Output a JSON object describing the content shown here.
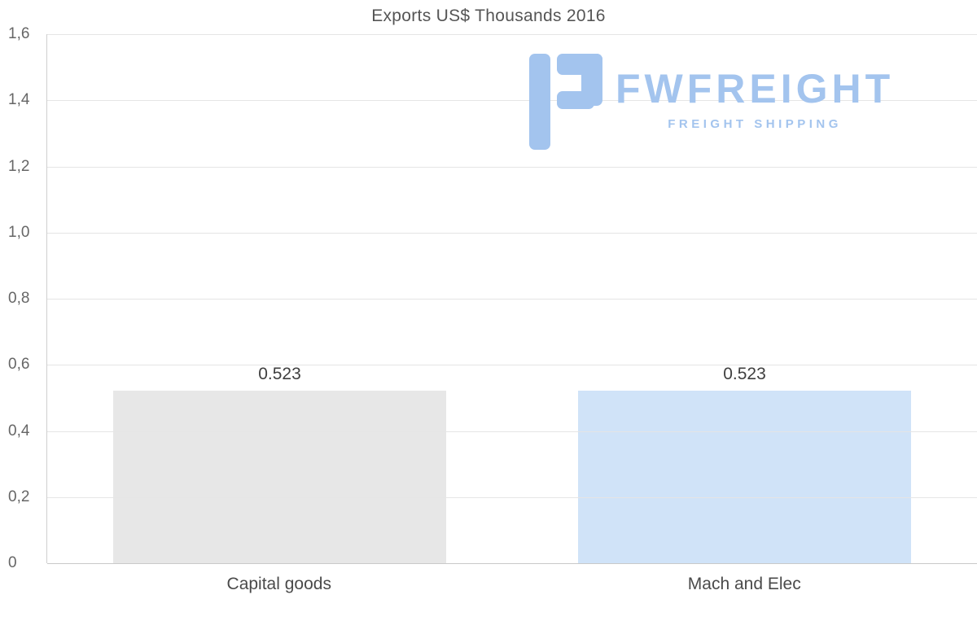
{
  "watermark": {
    "brand": "FWFREIGHT",
    "tagline": "FREIGHT SHIPPING",
    "color": "#a3c4ee"
  },
  "chart_data": {
    "type": "bar",
    "title": "Exports US$ Thousands 2016",
    "categories": [
      "Capital goods",
      "Mach and Elec"
    ],
    "values": [
      0.523,
      0.523
    ],
    "value_labels": [
      "0.523",
      "0.523"
    ],
    "bar_colors": [
      "#e7e7e7",
      "#d0e3f8"
    ],
    "xlabel": "",
    "ylabel": "",
    "ylim": [
      0,
      1.6
    ],
    "ytick_step": 0.2,
    "ytick_labels": [
      "0",
      "0,2",
      "0,4",
      "0,6",
      "0,8",
      "1,0",
      "1,2",
      "1,4",
      "1,6"
    ],
    "grid": true,
    "legend_position": "none"
  }
}
